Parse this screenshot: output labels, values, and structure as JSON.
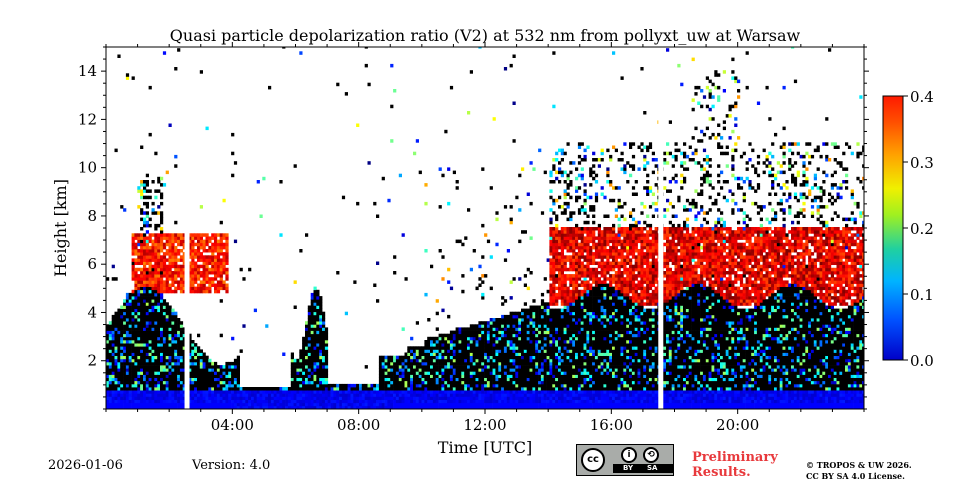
{
  "chart_data": {
    "type": "heatmap",
    "title": "Quasi particle depolarization ratio (V2) at 532 nm from pollyxt_uw at Warsaw",
    "xlabel": "Time [UTC]",
    "ylabel": "Height [km]",
    "xlim_hours": [
      0,
      24
    ],
    "ylim_km": [
      0,
      15
    ],
    "x_ticks": [
      {
        "value": 4,
        "label": "04:00"
      },
      {
        "value": 8,
        "label": "08:00"
      },
      {
        "value": 12,
        "label": "12:00"
      },
      {
        "value": 16,
        "label": "16:00"
      },
      {
        "value": 20,
        "label": "20:00"
      }
    ],
    "y_ticks": [
      {
        "value": 2,
        "label": "2"
      },
      {
        "value": 4,
        "label": "4"
      },
      {
        "value": 6,
        "label": "6"
      },
      {
        "value": 8,
        "label": "8"
      },
      {
        "value": 10,
        "label": "10"
      },
      {
        "value": 12,
        "label": "12"
      },
      {
        "value": 14,
        "label": "14"
      }
    ],
    "colorbar": {
      "range": [
        0.0,
        0.4
      ],
      "colormap": "jet",
      "ticks": [
        {
          "value": 0.0,
          "label": "0.0"
        },
        {
          "value": 0.1,
          "label": "0.1"
        },
        {
          "value": 0.2,
          "label": "0.2"
        },
        {
          "value": 0.3,
          "label": "0.3"
        },
        {
          "value": 0.4,
          "label": "0.4"
        }
      ]
    },
    "regions": [
      {
        "name": "boundary-layer-low",
        "t": [
          0,
          24
        ],
        "h": [
          0,
          0.7
        ],
        "value": 0.04
      },
      {
        "name": "aerosol-layer-morning",
        "t": [
          0,
          4.2
        ],
        "h": [
          0.5,
          3.5
        ],
        "value": 0.02
      },
      {
        "name": "dust-layer-morning",
        "t": [
          0.8,
          3.8
        ],
        "h": [
          4.8,
          7.2
        ],
        "value": 0.35
      },
      {
        "name": "aerosol-layer-afternoon",
        "t": [
          10,
          24
        ],
        "h": [
          0.5,
          5
        ],
        "value": 0.02
      },
      {
        "name": "dust-layer-afternoon",
        "t": [
          14,
          24
        ],
        "h": [
          4.2,
          7.5
        ],
        "value": 0.37
      }
    ],
    "gaps_hours": [
      2.55,
      17.55
    ]
  },
  "footer": {
    "date": "2026-01-06",
    "version": "Version: 4.0",
    "preliminary_line1": "Preliminary",
    "preliminary_line2": "Results.",
    "copyright_line1": "© TROPOS & UW 2026.",
    "copyright_line2": "CC BY SA 4.0 License.",
    "cc_logo": "cc",
    "cc_by": "BY",
    "cc_sa": "SA"
  }
}
